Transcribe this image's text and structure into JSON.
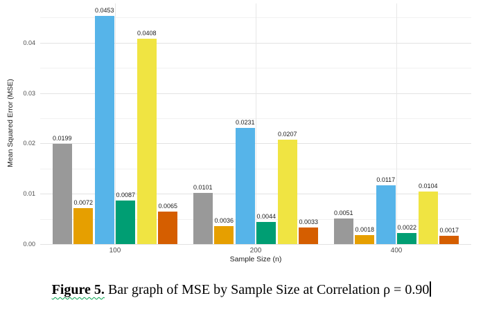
{
  "chart_data": {
    "type": "bar",
    "title": "",
    "xlabel": "Sample Size (n)",
    "ylabel": "Mean Squared Error (MSE)",
    "categories": [
      "100",
      "200",
      "400"
    ],
    "series": [
      {
        "name": "gray",
        "color": "#999999",
        "values": [
          0.0199,
          0.0101,
          0.0051
        ]
      },
      {
        "name": "orange",
        "color": "#E69F00",
        "values": [
          0.0072,
          0.0036,
          0.0018
        ]
      },
      {
        "name": "sky-blue",
        "color": "#56B4E9",
        "values": [
          0.0453,
          0.0231,
          0.0117
        ]
      },
      {
        "name": "green",
        "color": "#009E73",
        "values": [
          0.0087,
          0.0044,
          0.0022
        ]
      },
      {
        "name": "yellow",
        "color": "#F0E442",
        "values": [
          0.0408,
          0.0207,
          0.0104
        ]
      },
      {
        "name": "vermillion",
        "color": "#D55E00",
        "values": [
          0.0065,
          0.0033,
          0.0017
        ]
      }
    ],
    "bar_label_decimals": 4,
    "y_major_ticks": [
      0,
      0.01,
      0.02,
      0.03,
      0.04
    ],
    "y_tick_labels": [
      "0.00",
      "0.01",
      "0.02",
      "0.03",
      "0.04"
    ],
    "y_minor_step": 0.005,
    "y_grid_max": 0.045,
    "ylim": [
      0,
      0.0478
    ],
    "grid": true,
    "legend": "none",
    "background": "#ffffff"
  },
  "caption": {
    "label": "Figure 5.",
    "text": " Bar graph of MSE by Sample Size at Correlation ρ = 0.90",
    "squiggle_color": "#00a14b"
  }
}
